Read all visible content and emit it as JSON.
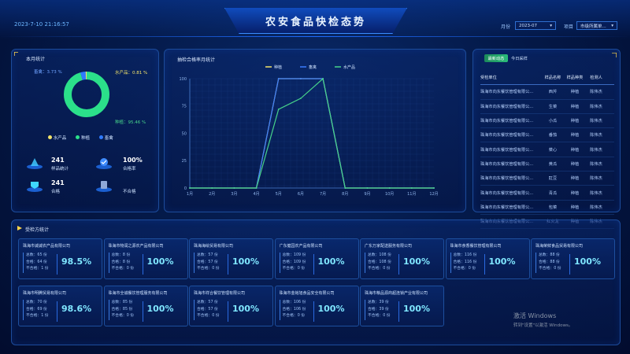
{
  "header": {
    "datetime": "2023-7-10 21:16:57",
    "title": "农安食品快检态势",
    "month_label": "月份",
    "month_value": "2023-07",
    "unit_label": "项目",
    "unit_value": "市级所属单..."
  },
  "monthly": {
    "title": "本月统计",
    "donut_labels": {
      "seafood": "水产品：0.81 %",
      "livestock": "畜禽：3.73 %",
      "planting": "种植：95.46 %"
    },
    "legend": [
      "水产品",
      "种植",
      "畜禽"
    ],
    "stats": [
      {
        "value": "241",
        "label": "样品统计"
      },
      {
        "value": "100%",
        "label": "合格率"
      },
      {
        "value": "241",
        "label": "合格"
      },
      {
        "value": "",
        "label": "不合格"
      }
    ]
  },
  "chart_panel": {
    "title": "抽检合格率月统计"
  },
  "chart_data": {
    "type": "line",
    "title": "抽检合格率月统计",
    "categories": [
      "1月",
      "2月",
      "3月",
      "4月",
      "5月",
      "6月",
      "7月",
      "8月",
      "9月",
      "10月",
      "11月",
      "12月"
    ],
    "series": [
      {
        "name": "种植",
        "values": [
          0,
          0,
          0,
          0,
          100,
          100,
          100,
          0,
          0,
          0,
          0,
          0
        ]
      },
      {
        "name": "畜禽",
        "values": [
          0,
          0,
          0,
          0,
          100,
          100,
          100,
          0,
          0,
          0,
          0,
          0
        ]
      },
      {
        "name": "水产品",
        "values": [
          0,
          0,
          0,
          0,
          72,
          82,
          100,
          0,
          0,
          0,
          0,
          0
        ]
      }
    ],
    "yticks": [
      "0",
      "25",
      "50",
      "75",
      "100"
    ],
    "ylim": [
      0,
      100
    ],
    "colors": {
      "种植": "#f2e36a",
      "畜禽": "#3a7dff",
      "水产品": "#46d28a"
    },
    "legend_position": "top"
  },
  "realtime": {
    "tab_active": "最新动态",
    "tab_other": "今日采样",
    "headers": [
      "受检单位",
      "样品名称",
      "样品种类",
      "检测人"
    ],
    "rows": [
      [
        "珠海市向东餐饮管理有限公...",
        "西芹",
        "种植",
        "陈伟杰"
      ],
      [
        "珠海市向东餐饮管理有限公...",
        "生菜",
        "种植",
        "陈伟杰"
      ],
      [
        "珠海市向东餐饮管理有限公...",
        "小瓜",
        "种植",
        "陈伟杰"
      ],
      [
        "珠海市向东餐饮管理有限公...",
        "番茄",
        "种植",
        "陈伟杰"
      ],
      [
        "珠海市向东餐饮管理有限公...",
        "菜心",
        "种植",
        "陈伟杰"
      ],
      [
        "珠海市向东餐饮管理有限公...",
        "黄瓜",
        "种植",
        "陈伟杰"
      ],
      [
        "珠海市向东餐饮管理有限公...",
        "豇豆",
        "种植",
        "陈伟杰"
      ],
      [
        "珠海市向东餐饮管理有限公...",
        "青瓜",
        "种植",
        "陈伟杰"
      ],
      [
        "珠海市向东餐饮管理有限公...",
        "包菜",
        "种植",
        "陈伟杰"
      ],
      [
        "珠海市向东餐饮管理有限公...",
        "红火龙",
        "种植",
        "陈伟杰"
      ]
    ]
  },
  "units": {
    "title": "受检方统计",
    "cards": [
      {
        "name": "珠海市诚诚农产品有限公司",
        "total": "总数：65 份",
        "pass": "合格：64 份",
        "fail": "不合格：1 份",
        "pct": "98.5%"
      },
      {
        "name": "珠海市物润之源农产品有限公司",
        "total": "总数：8 份",
        "pass": "合格：8 份",
        "fail": "不合格：0 份",
        "pct": "100%"
      },
      {
        "name": "珠海海绘贸易有限公司",
        "total": "总数：57 份",
        "pass": "合格：57 份",
        "fail": "不合格：0 份",
        "pct": "100%"
      },
      {
        "name": "广东健园农产品有限公司",
        "total": "总数：109 份",
        "pass": "合格：109 份",
        "fail": "不合格：0 份",
        "pct": "100%"
      },
      {
        "name": "广东万家配送服务有限公司",
        "total": "总数：108 份",
        "pass": "合格：108 份",
        "fail": "不合格：0 份",
        "pct": "100%"
      },
      {
        "name": "珠海市食香餐饮管理有限公司",
        "total": "总数：116 份",
        "pass": "合格：116 份",
        "fail": "不合格：0 份",
        "pct": "100%"
      },
      {
        "name": "珠海荣鲜食品贸易有限公司",
        "total": "总数：88 份",
        "pass": "合格：88 份",
        "fail": "不合格：0 份",
        "pct": "100%"
      },
      {
        "name": "珠海市明腾贸易有限公司",
        "total": "总数：70 份",
        "pass": "合格：69 份",
        "fail": "不合格：1 份",
        "pct": "98.6%"
      },
      {
        "name": "珠海市全诚餐饮管理服务有限公司",
        "total": "总数：85 份",
        "pass": "合格：85 份",
        "fail": "不合格：0 份",
        "pct": "100%"
      },
      {
        "name": "珠海市祥合餐饮管理有限公司",
        "total": "总数：57 份",
        "pass": "合格：57 份",
        "fail": "不合格：0 份",
        "pct": "100%"
      },
      {
        "name": "珠海市金裕旭食品安全有限公司",
        "total": "总数：106 份",
        "pass": "合格：106 份",
        "fail": "不合格：0 份",
        "pct": "100%"
      },
      {
        "name": "珠海市粮品源商超连锁产业有限公司",
        "total": "总数：39 份",
        "pass": "合格：39 份",
        "fail": "不合格：0 份",
        "pct": "100%"
      }
    ]
  },
  "watermark": {
    "line1": "激活 Windows",
    "line2": "转到\"设置\"以激活 Windows。"
  }
}
